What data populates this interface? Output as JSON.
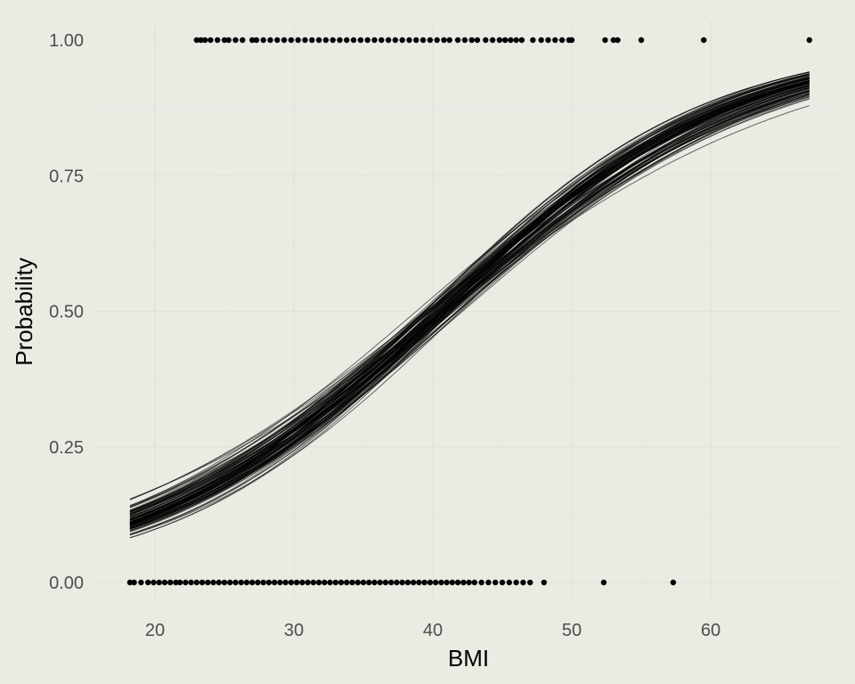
{
  "chart_data": {
    "type": "line",
    "title": "",
    "xlabel": "BMI",
    "ylabel": "Probability",
    "xlim": [
      18,
      67
    ],
    "ylim": [
      0,
      1
    ],
    "x_ticks": [
      20,
      30,
      40,
      50,
      60
    ],
    "x_tick_labels": [
      "20",
      "30",
      "40",
      "50",
      "60"
    ],
    "y_ticks": [
      0,
      0.25,
      0.5,
      0.75,
      1
    ],
    "y_tick_labels": [
      "0.00",
      "0.25",
      "0.50",
      "0.75",
      "1.00"
    ],
    "grid": true,
    "legend": "none",
    "colors": {
      "background": "#ebebe4",
      "lines": "#000000",
      "points": "#000000"
    },
    "curve_family": {
      "count": 100,
      "description": "posterior draws of a logistic regression curve, P(y=1) vs BMI",
      "center": {
        "intercept": -5.2,
        "slope": 0.13
      },
      "x_range": [
        18.2,
        67.1
      ],
      "band_at_x": [
        {
          "x": 18.2,
          "low": 0.07,
          "high": 0.18
        },
        {
          "x": 40,
          "low": 0.47,
          "high": 0.54
        },
        {
          "x": 67.1,
          "low": 0.84,
          "high": 0.97
        }
      ]
    },
    "observations_y1": [
      23,
      23.3,
      23.6,
      24,
      24.5,
      25,
      25.3,
      25.8,
      26.3,
      27,
      27.3,
      27.8,
      28.3,
      28.8,
      29.3,
      29.8,
      30.3,
      30.8,
      31.3,
      31.8,
      32.3,
      32.8,
      33.3,
      33.8,
      34.3,
      34.8,
      35.3,
      35.8,
      36.3,
      36.8,
      37.3,
      37.8,
      38.3,
      38.8,
      39.3,
      39.8,
      40.3,
      40.8,
      41.2,
      41.8,
      42.3,
      42.8,
      43.2,
      43.8,
      44.3,
      44.8,
      45.2,
      45.6,
      46.0,
      46.4,
      47.2,
      47.8,
      48.3,
      48.8,
      49.3,
      49.8,
      50.0,
      52.4,
      53.0,
      53.3,
      55.0,
      59.5,
      67.1
    ],
    "observations_y0": [
      18.2,
      18.5,
      19.0,
      19.5,
      19.9,
      20.3,
      20.7,
      21.1,
      21.5,
      21.8,
      22.2,
      22.6,
      23.0,
      23.4,
      23.8,
      24.2,
      24.6,
      25.0,
      25.4,
      25.8,
      26.2,
      26.6,
      27.0,
      27.4,
      27.8,
      28.2,
      28.6,
      29.0,
      29.4,
      29.8,
      30.2,
      30.6,
      31.0,
      31.4,
      31.8,
      32.2,
      32.6,
      33.0,
      33.4,
      33.8,
      34.2,
      34.6,
      35.0,
      35.4,
      35.8,
      36.2,
      36.6,
      37.0,
      37.4,
      37.8,
      38.2,
      38.6,
      39.0,
      39.4,
      39.8,
      40.2,
      40.6,
      41.0,
      41.4,
      41.8,
      42.2,
      42.6,
      43.0,
      43.5,
      44.0,
      44.5,
      45.0,
      45.5,
      46.0,
      46.5,
      47.0,
      48.0,
      52.3,
      57.3
    ]
  }
}
